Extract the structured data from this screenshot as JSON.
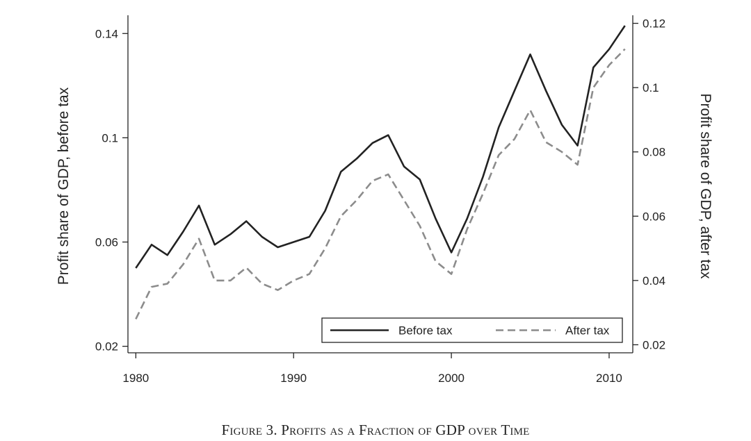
{
  "caption": "Figure 3. Profits as a Fraction of GDP over Time",
  "chart_data": {
    "type": "line",
    "x": [
      1980,
      1981,
      1982,
      1983,
      1984,
      1985,
      1986,
      1987,
      1988,
      1989,
      1990,
      1991,
      1992,
      1993,
      1994,
      1995,
      1996,
      1997,
      1998,
      1999,
      2000,
      2001,
      2002,
      2003,
      2004,
      2005,
      2006,
      2007,
      2008,
      2009,
      2010,
      2011
    ],
    "series": [
      {
        "name": "Before tax",
        "axis": "left",
        "style": "solid",
        "color": "#222222",
        "values": [
          0.05,
          0.059,
          0.055,
          0.064,
          0.074,
          0.059,
          0.063,
          0.068,
          0.062,
          0.058,
          0.06,
          0.062,
          0.072,
          0.087,
          0.092,
          0.098,
          0.101,
          0.089,
          0.084,
          0.069,
          0.056,
          0.069,
          0.085,
          0.104,
          0.118,
          0.132,
          0.118,
          0.105,
          0.097,
          0.127,
          0.134,
          0.143
        ]
      },
      {
        "name": "After tax",
        "axis": "right",
        "style": "dashed",
        "color": "#8c8c8c",
        "values": [
          0.028,
          0.038,
          0.039,
          0.045,
          0.053,
          0.04,
          0.04,
          0.044,
          0.039,
          0.037,
          0.04,
          0.042,
          0.05,
          0.06,
          0.065,
          0.071,
          0.073,
          0.065,
          0.057,
          0.046,
          0.042,
          0.056,
          0.067,
          0.079,
          0.084,
          0.093,
          0.083,
          0.08,
          0.076,
          0.1,
          0.107,
          0.112
        ]
      }
    ],
    "xlabel": "",
    "ylabel_left": "Profit share of GDP, before tax",
    "ylabel_right": "Profit share of GDP, after tax",
    "xlim": [
      1979.5,
      2011.5
    ],
    "ylim_left": [
      0.0175,
      0.147
    ],
    "ylim_right": [
      0.0175,
      0.1225
    ],
    "xticks": [
      1980,
      1990,
      2000,
      2010
    ],
    "xtick_labels": [
      "1980",
      "1990",
      "2000",
      "2010"
    ],
    "yticks_left": [
      0.02,
      0.06,
      0.1,
      0.14
    ],
    "ytick_labels_left": [
      "0.02",
      "0.06",
      "0.1",
      "0.14"
    ],
    "yticks_right": [
      0.02,
      0.04,
      0.06,
      0.08,
      0.1,
      0.12
    ],
    "ytick_labels_right": [
      "0.02",
      "0.04",
      "0.06",
      "0.08",
      "0.1",
      "0.12"
    ],
    "grid": false,
    "legend": {
      "position": "bottom-right",
      "entries": [
        "Before tax",
        "After tax"
      ]
    }
  }
}
